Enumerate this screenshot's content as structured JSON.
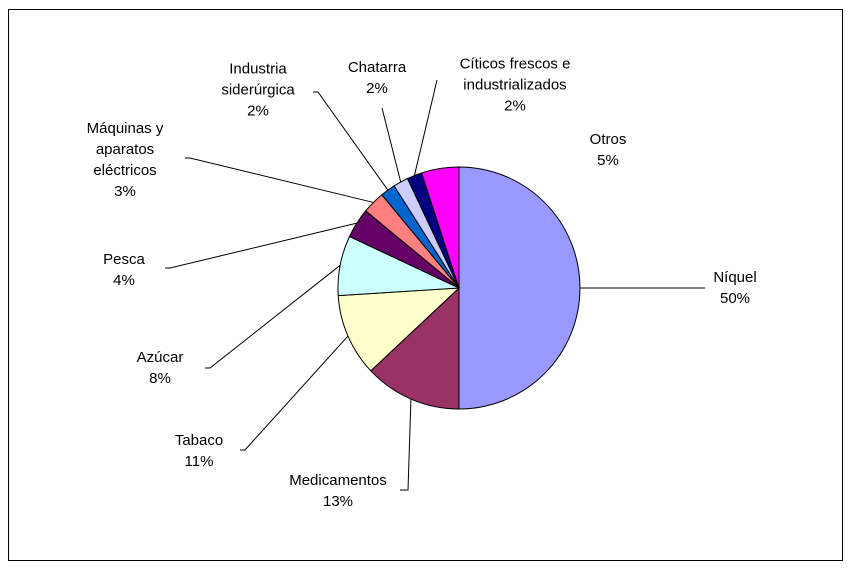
{
  "chart_data": {
    "type": "pie",
    "categories": [
      "Níquel",
      "Medicamentos",
      "Tabaco",
      "Azúcar",
      "Pesca",
      "Máquinas y aparatos eléctricos",
      "Industria siderúrgica",
      "Chatarra",
      "Cíticos frescos e industrializados",
      "Otros"
    ],
    "values": [
      50,
      13,
      11,
      8,
      4,
      3,
      2,
      2,
      2,
      5
    ],
    "value_labels": [
      "50%",
      "13%",
      "11%",
      "8%",
      "4%",
      "3%",
      "2%",
      "2%",
      "2%",
      "5%"
    ],
    "colors": [
      "#9999ff",
      "#993366",
      "#ffffcc",
      "#ccffff",
      "#660066",
      "#ff8080",
      "#0066cc",
      "#ccccff",
      "#000080",
      "#ff00ff"
    ]
  }
}
